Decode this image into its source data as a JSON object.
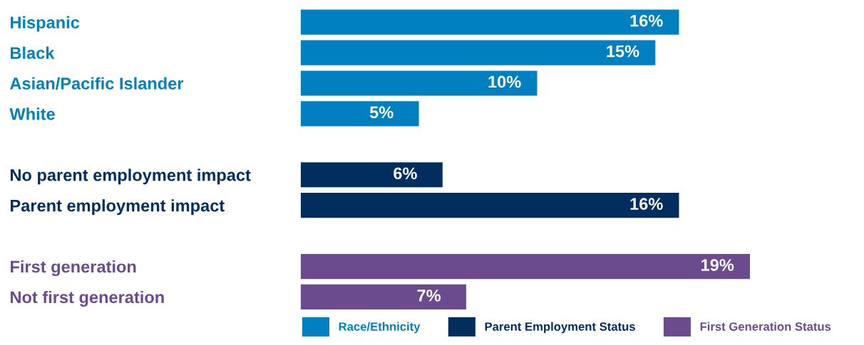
{
  "chart_data": {
    "type": "bar",
    "orientation": "horizontal",
    "categories": [
      "Hispanic",
      "Black",
      "Asian/Pacific Islander",
      "White",
      null,
      "No parent employment impact",
      "Parent employment impact",
      null,
      "First generation",
      "Not first generation"
    ],
    "series": [
      {
        "name": "Race/Ethnicity",
        "color": "#0080c0",
        "values": [
          16,
          15,
          10,
          5,
          null,
          null,
          null,
          null,
          null,
          null
        ],
        "value_labels": [
          "16%",
          "15%",
          "10%",
          "5%",
          null,
          null,
          null,
          null,
          null,
          null
        ]
      },
      {
        "name": "Parent Employment Status",
        "color": "#002f5f",
        "values": [
          null,
          null,
          null,
          null,
          null,
          6,
          16,
          null,
          null,
          null
        ],
        "value_labels": [
          null,
          null,
          null,
          null,
          null,
          "6%",
          "16%",
          null,
          null,
          null
        ]
      },
      {
        "name": "First Generation Status",
        "color": "#6b4a8e",
        "values": [
          null,
          null,
          null,
          null,
          null,
          null,
          null,
          null,
          19,
          7
        ],
        "value_labels": [
          null,
          null,
          null,
          null,
          null,
          null,
          null,
          null,
          "19%",
          "7%"
        ]
      }
    ],
    "legend": "bottom",
    "grid": false,
    "tick_labels": "y"
  }
}
